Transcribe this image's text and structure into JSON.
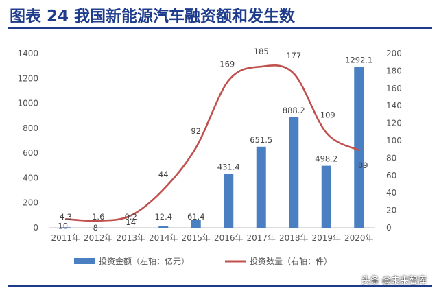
{
  "header": {
    "title": "图表 24 我国新能源汽车融资额和发生数"
  },
  "watermark": "头条 @未来智库",
  "chart_data": {
    "type": "bar+line",
    "categories": [
      "2011年",
      "2012年",
      "2013年",
      "2014年",
      "2015年",
      "2016年",
      "2017年",
      "2018年",
      "2019年",
      "2020年"
    ],
    "series": [
      {
        "name": "投资金额（左轴：亿元）",
        "type": "bar",
        "axis": "left",
        "color": "#4a7fc1",
        "values": [
          4.3,
          1.6,
          0.2,
          12.4,
          61.4,
          431.4,
          651.5,
          888.2,
          498.2,
          1292.1
        ],
        "labels": [
          "4.3",
          "1.6",
          "0.2",
          "12.4",
          "61.4",
          "431.4",
          "651.5",
          "888.2",
          "498.2",
          "1292.1"
        ]
      },
      {
        "name": "投资数量（右轴：件）",
        "type": "line",
        "axis": "right",
        "color": "#c0504d",
        "values": [
          10,
          8,
          14,
          44,
          92,
          169,
          185,
          177,
          109,
          89
        ],
        "labels": [
          "10",
          "8",
          "14",
          "44",
          "92",
          "169",
          "185",
          "177",
          "109",
          "89"
        ]
      }
    ],
    "left_axis": {
      "ylim": [
        0,
        1400
      ],
      "ticks": [
        0,
        200,
        400,
        600,
        800,
        1000,
        1200,
        1400
      ]
    },
    "right_axis": {
      "ylim": [
        0,
        200
      ],
      "ticks": [
        0,
        20,
        40,
        60,
        80,
        100,
        120,
        140,
        160,
        180,
        200
      ]
    },
    "legend": "bottom",
    "grid": false
  }
}
